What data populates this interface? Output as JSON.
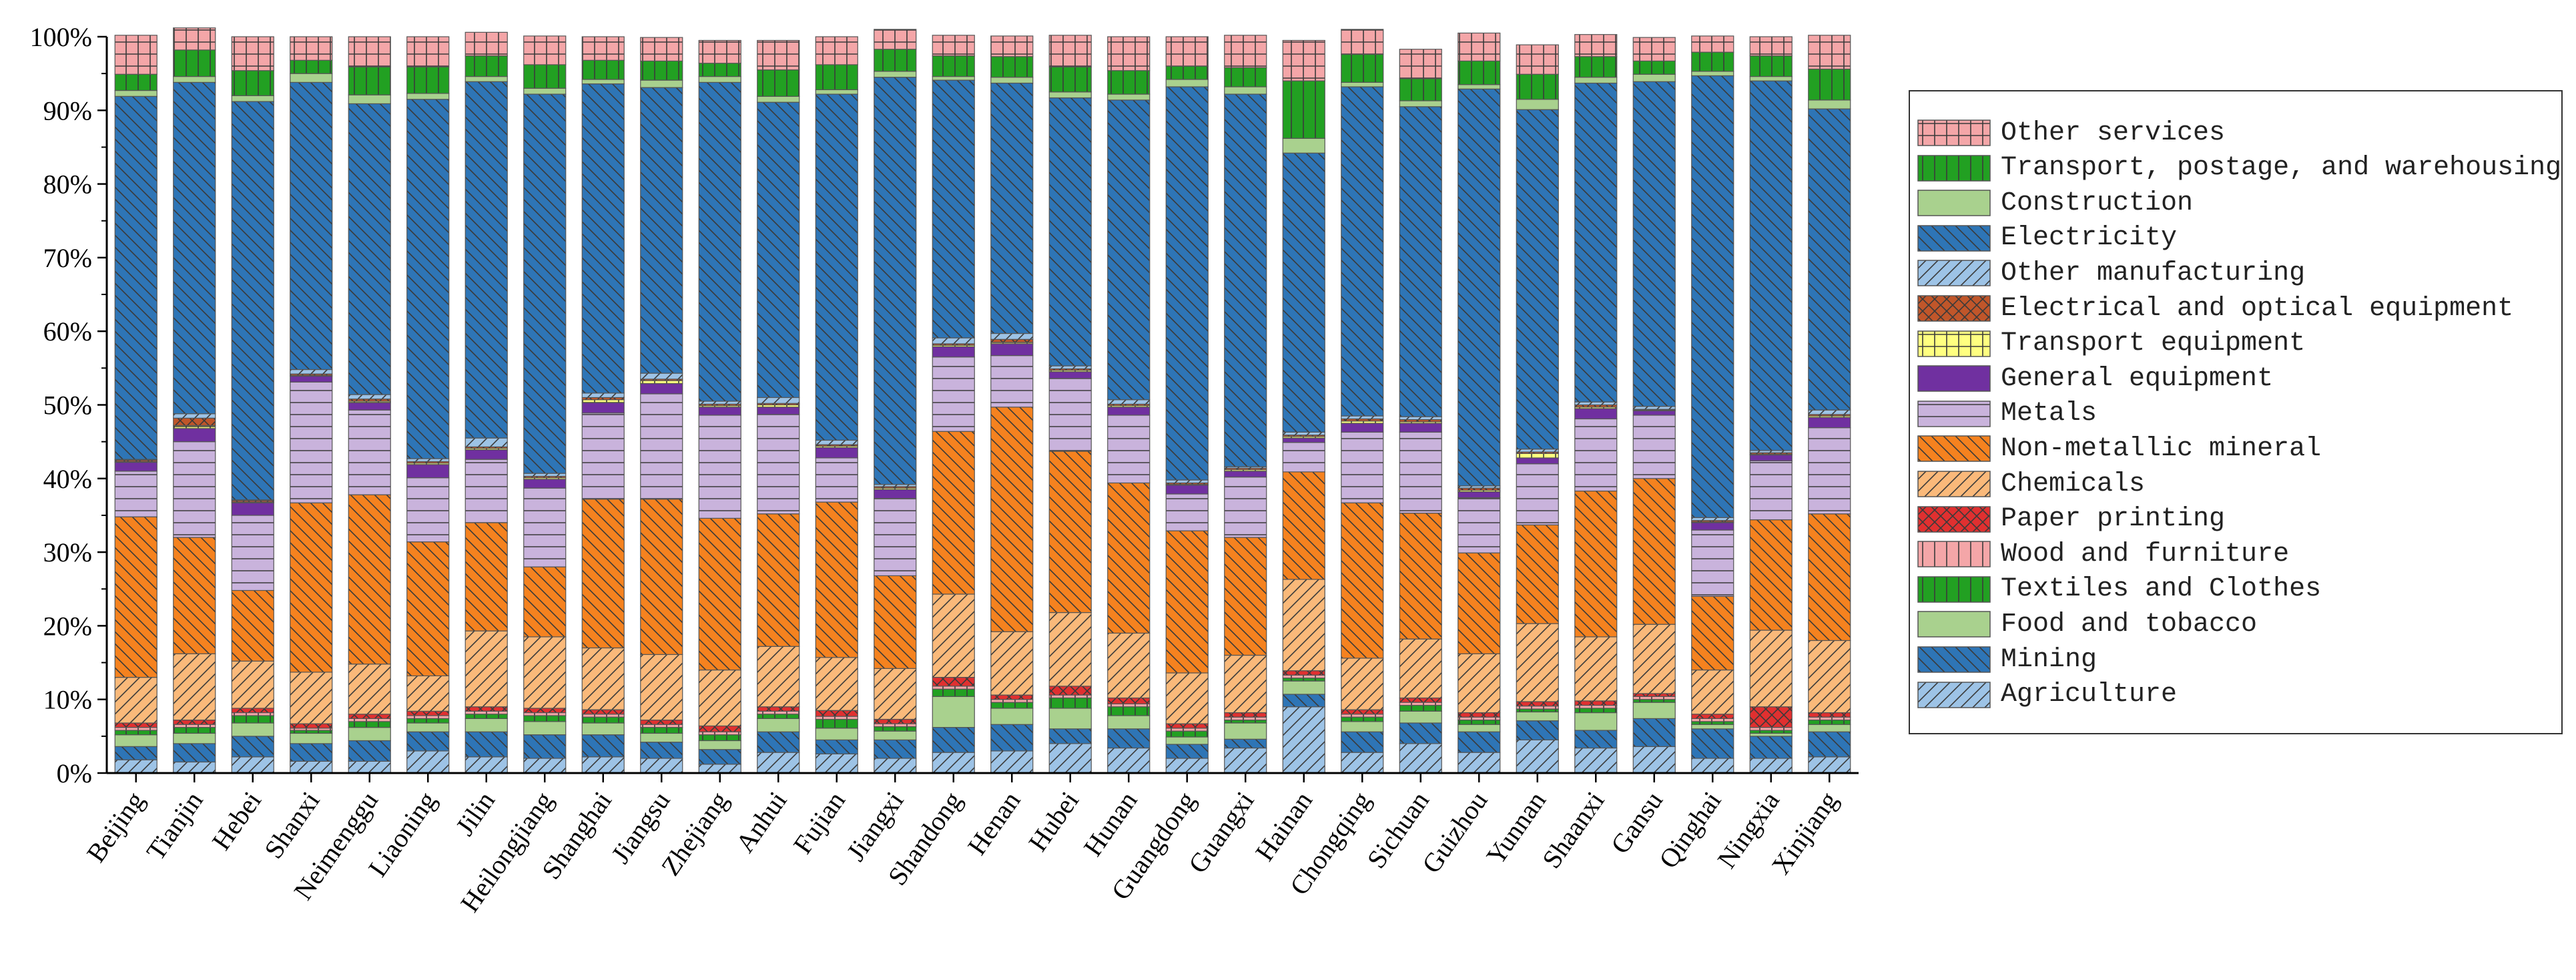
{
  "chart_data": {
    "type": "bar",
    "stacked": true,
    "title": "",
    "xlabel": "",
    "ylabel": "",
    "ylim": [
      0,
      100
    ],
    "yticks": [
      "0%",
      "10%",
      "20%",
      "30%",
      "40%",
      "50%",
      "60%",
      "70%",
      "80%",
      "90%",
      "100%"
    ],
    "legend_position": "right",
    "categories": [
      "Beijing",
      "Tianjin",
      "Hebei",
      "Shanxi",
      "Neimenggu",
      "Liaoning",
      "Jilin",
      "Heilongjiang",
      "Shanghai",
      "Jiangsu",
      "Zhejiang",
      "Anhui",
      "Fujian",
      "Jiangxi",
      "Shandong",
      "Henan",
      "Hubei",
      "Hunan",
      "Guangdong",
      "Guangxi",
      "Hainan",
      "Chongqing",
      "Sichuan",
      "Guizhou",
      "Yunnan",
      "Shaanxi",
      "Gansu",
      "Qinghai",
      "Ningxia",
      "Xinjiang"
    ],
    "series": [
      {
        "name": "Agriculture",
        "color": "#9dc3e6",
        "pattern": "diag-fwd",
        "values": [
          1.8,
          1.5,
          2.2,
          1.6,
          1.6,
          3.0,
          2.2,
          2.0,
          2.2,
          2.0,
          1.2,
          2.8,
          2.6,
          2.0,
          2.8,
          3.0,
          4.0,
          3.4,
          2.0,
          3.4,
          9.0,
          2.8,
          4.0,
          2.8,
          4.5,
          3.4,
          3.6,
          2.0,
          2.0,
          2.2
        ]
      },
      {
        "name": "Mining",
        "color": "#2e75b6",
        "pattern": "diag-back",
        "values": [
          1.8,
          2.5,
          2.8,
          2.4,
          2.8,
          2.6,
          3.4,
          3.2,
          3.0,
          2.2,
          2.0,
          2.8,
          1.9,
          2.5,
          3.4,
          3.6,
          2.0,
          2.6,
          1.9,
          1.2,
          1.7,
          2.8,
          2.8,
          2.8,
          2.6,
          2.4,
          3.8,
          4.0,
          3.0,
          3.4
        ]
      },
      {
        "name": "Food and tobacco",
        "color": "#a9d18e",
        "pattern": "none",
        "values": [
          1.6,
          1.4,
          1.8,
          1.4,
          1.8,
          1.2,
          1.8,
          1.8,
          1.6,
          1.2,
          1.2,
          1.8,
          1.6,
          1.2,
          4.2,
          2.2,
          2.8,
          1.8,
          1.0,
          2.2,
          1.8,
          1.4,
          1.6,
          1.0,
          1.2,
          2.4,
          2.2,
          0.6,
          0.4,
          1.0
        ]
      },
      {
        "name": "Textiles and Clothes",
        "color": "#22a022",
        "pattern": "vertical",
        "values": [
          0.6,
          0.8,
          1.0,
          0.4,
          0.8,
          0.6,
          0.6,
          0.8,
          0.8,
          0.8,
          0.8,
          0.6,
          1.2,
          0.6,
          1.0,
          0.8,
          1.4,
          1.2,
          0.8,
          0.4,
          0.4,
          0.6,
          0.8,
          0.6,
          0.4,
          0.6,
          0.4,
          0.4,
          0.4,
          0.6
        ]
      },
      {
        "name": "Wood and furniture",
        "color": "#f4a6a8",
        "pattern": "vertical",
        "values": [
          0.4,
          0.4,
          0.4,
          0.3,
          0.4,
          0.4,
          0.4,
          0.4,
          0.4,
          0.4,
          0.4,
          0.4,
          0.4,
          0.4,
          0.4,
          0.4,
          0.4,
          0.4,
          0.4,
          0.4,
          0.4,
          0.4,
          0.4,
          0.4,
          0.4,
          0.4,
          0.4,
          0.4,
          0.4,
          0.4
        ]
      },
      {
        "name": "Paper printing",
        "color": "#e03030",
        "pattern": "cross",
        "values": [
          0.6,
          0.6,
          0.6,
          0.6,
          0.6,
          0.6,
          0.6,
          0.6,
          0.6,
          0.6,
          0.8,
          0.6,
          0.8,
          0.6,
          1.2,
          0.6,
          1.2,
          0.8,
          0.6,
          0.6,
          0.6,
          0.6,
          0.6,
          0.6,
          0.6,
          0.6,
          0.4,
          0.6,
          2.8,
          0.6
        ]
      },
      {
        "name": "Chemicals",
        "color": "#fab97a",
        "pattern": "diag-fwd",
        "values": [
          6.2,
          9.0,
          6.4,
          7.0,
          6.8,
          4.8,
          10.3,
          9.7,
          8.4,
          8.9,
          7.6,
          8.2,
          7.2,
          6.9,
          11.3,
          8.6,
          10.0,
          8.8,
          6.9,
          7.8,
          12.4,
          7.0,
          8.0,
          8.0,
          10.6,
          8.7,
          9.4,
          6.0,
          10.4,
          9.8
        ]
      },
      {
        "name": "Non-metallic mineral",
        "color": "#f5821f",
        "pattern": "diag-back",
        "values": [
          21.8,
          15.8,
          9.6,
          23.0,
          23.0,
          18.2,
          14.7,
          9.5,
          20.2,
          21.1,
          20.6,
          18.0,
          21.1,
          12.6,
          22.1,
          30.5,
          21.9,
          20.4,
          19.3,
          16.0,
          14.6,
          21.1,
          17.1,
          13.7,
          13.4,
          19.8,
          19.8,
          10.0,
          15.0,
          17.2
        ]
      },
      {
        "name": "Metals",
        "color": "#c9b3dc",
        "pattern": "horizontal",
        "values": [
          6.2,
          13.0,
          10.2,
          16.4,
          11.5,
          8.7,
          8.6,
          10.7,
          11.7,
          14.3,
          14.0,
          13.5,
          6.0,
          10.5,
          10.1,
          7.0,
          9.9,
          9.2,
          5.0,
          8.2,
          4.0,
          9.6,
          11.0,
          7.5,
          8.3,
          9.8,
          8.6,
          9.0,
          8.0,
          11.7
        ]
      },
      {
        "name": "General equipment",
        "color": "#7030a0",
        "pattern": "none",
        "values": [
          1.2,
          1.8,
          1.7,
          0.8,
          1.0,
          1.8,
          1.3,
          1.2,
          1.4,
          1.4,
          1.1,
          1.0,
          1.4,
          1.2,
          1.4,
          1.6,
          0.9,
          1.1,
          1.2,
          0.8,
          0.6,
          1.2,
          1.2,
          0.8,
          0.8,
          1.4,
          0.6,
          1.0,
          0.8,
          1.4
        ]
      },
      {
        "name": "Transport equipment",
        "color": "#ffff80",
        "pattern": "grid",
        "values": [
          0.1,
          0.4,
          0.1,
          0.1,
          0.2,
          0.2,
          0.2,
          0.2,
          0.4,
          0.4,
          0.2,
          0.3,
          0.2,
          0.2,
          0.2,
          0.2,
          0.2,
          0.2,
          0.1,
          0.2,
          0.2,
          0.3,
          0.2,
          0.2,
          0.6,
          0.2,
          0.1,
          0.1,
          0.1,
          0.2
        ]
      },
      {
        "name": "Electrical and optical equipment",
        "color": "#c0562a",
        "pattern": "cross",
        "values": [
          0.2,
          1.0,
          0.2,
          0.2,
          0.3,
          0.2,
          0.2,
          0.2,
          0.3,
          0.2,
          0.2,
          0.2,
          0.2,
          0.2,
          0.2,
          0.4,
          0.2,
          0.2,
          0.2,
          0.2,
          0.2,
          0.3,
          0.3,
          0.3,
          0.2,
          0.3,
          0.1,
          0.2,
          0.2,
          0.2
        ]
      },
      {
        "name": "Other manufacturing",
        "color": "#9dc3e6",
        "pattern": "diag-fwd",
        "values": [
          0.1,
          0.6,
          0.1,
          0.6,
          0.6,
          0.4,
          1.2,
          0.4,
          0.6,
          0.8,
          0.4,
          0.8,
          0.6,
          0.3,
          0.8,
          0.8,
          0.4,
          0.6,
          0.4,
          0.2,
          0.4,
          0.4,
          0.4,
          0.3,
          0.4,
          0.4,
          0.4,
          0.4,
          0.3,
          0.6
        ]
      },
      {
        "name": "Electricity",
        "color": "#2e75b6",
        "pattern": "diag-back",
        "values": [
          49.3,
          45.0,
          54.1,
          39.0,
          39.5,
          48.8,
          48.4,
          51.5,
          42.0,
          38.8,
          43.3,
          40.1,
          47.0,
          55.3,
          35.0,
          34.0,
          36.4,
          40.7,
          53.4,
          50.6,
          37.9,
          44.7,
          42.1,
          53.9,
          46.1,
          43.3,
          44.1,
          60.0,
          50.2,
          40.9
        ]
      },
      {
        "name": "Construction",
        "color": "#a9d18e",
        "pattern": "none",
        "values": [
          0.8,
          0.8,
          0.8,
          1.2,
          1.2,
          0.8,
          0.7,
          0.8,
          0.6,
          1.0,
          0.8,
          0.8,
          0.6,
          0.8,
          0.5,
          0.8,
          0.8,
          0.8,
          1.0,
          1.0,
          2.0,
          0.6,
          0.8,
          0.6,
          1.4,
          0.8,
          1.0,
          0.6,
          0.6,
          1.2
        ]
      },
      {
        "name": "Transport, postage, and warehousing",
        "color": "#22a022",
        "pattern": "vertical",
        "values": [
          2.2,
          3.6,
          3.4,
          1.8,
          3.8,
          3.6,
          2.8,
          3.2,
          2.6,
          2.6,
          1.8,
          3.6,
          3.4,
          3.0,
          2.8,
          2.8,
          3.4,
          3.2,
          1.8,
          2.6,
          7.8,
          3.8,
          3.0,
          3.2,
          3.4,
          2.8,
          1.8,
          2.6,
          2.8,
          4.2
        ]
      },
      {
        "name": "Other services",
        "color": "#f4a6a8",
        "pattern": "grid",
        "values": [
          5.3,
          3.0,
          4.6,
          3.2,
          4.1,
          4.1,
          3.2,
          3.9,
          3.2,
          3.2,
          3.1,
          4.0,
          3.8,
          2.7,
          2.8,
          2.8,
          4.3,
          4.6,
          4.0,
          4.4,
          5.5,
          3.4,
          4.0,
          3.8,
          4.0,
          3.0,
          3.2,
          2.2,
          2.6,
          4.6
        ]
      }
    ],
    "legend_order": [
      "Other services",
      "Transport, postage, and warehousing",
      "Construction",
      "Electricity",
      "Other manufacturing",
      "Electrical and optical equipment",
      "Transport equipment",
      "General equipment",
      "Metals",
      "Non-metallic mineral",
      "Chemicals",
      "Paper printing",
      "Wood and furniture",
      "Textiles and Clothes",
      "Food and tobacco",
      "Mining",
      "Agriculture"
    ]
  }
}
